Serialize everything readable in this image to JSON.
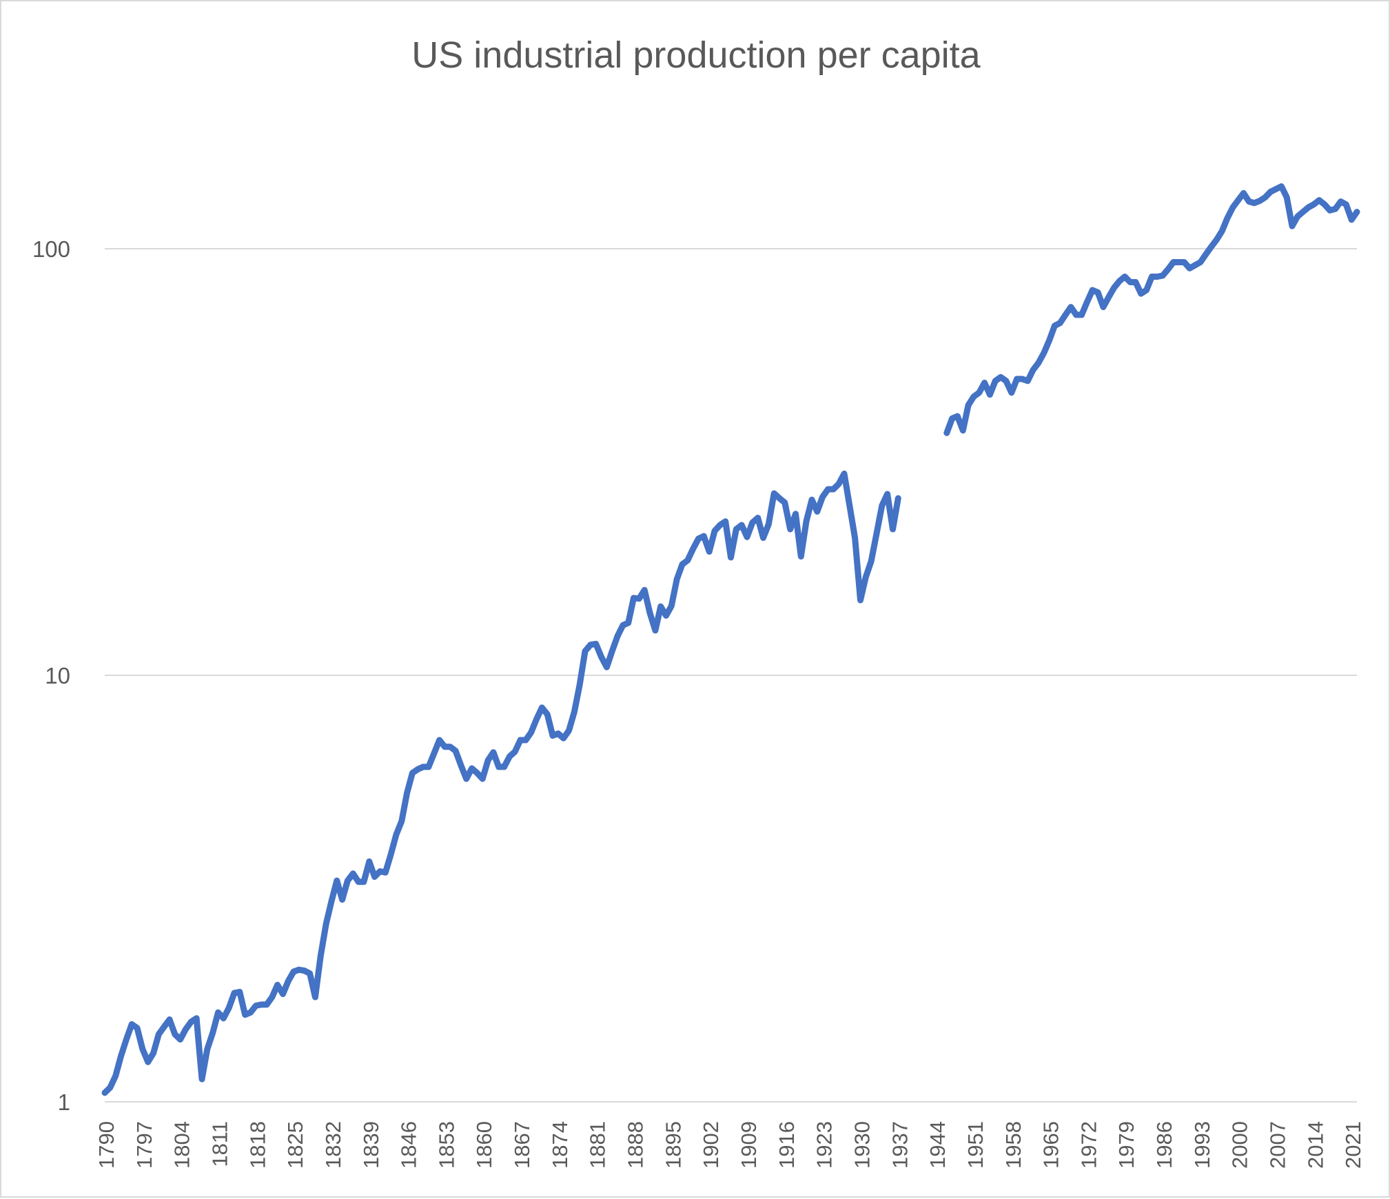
{
  "chart_data": {
    "type": "line",
    "title": "US industrial production per capita",
    "xlabel": "",
    "ylabel": "",
    "y_scale": "log",
    "ylim": [
      1,
      200
    ],
    "xlim": [
      1790,
      2022
    ],
    "grid": "horizontal",
    "legend": "none",
    "y_ticks": [
      {
        "value": 1,
        "label": "1"
      },
      {
        "value": 10,
        "label": "10"
      },
      {
        "value": 100,
        "label": "100"
      }
    ],
    "x_tick_labels": [
      "1790",
      "1797",
      "1804",
      "1811",
      "1818",
      "1825",
      "1832",
      "1839",
      "1846",
      "1853",
      "1860",
      "1867",
      "1874",
      "1881",
      "1888",
      "1895",
      "1902",
      "1909",
      "1916",
      "1923",
      "1930",
      "1937",
      "1944",
      "1951",
      "1958",
      "1965",
      "1972",
      "1979",
      "1986",
      "1993",
      "2000",
      "2007",
      "2014",
      "2021"
    ],
    "color": "#4472c4",
    "series": [
      {
        "segments": [
          {
            "start_year": 1790,
            "values": [
              1.05,
              1.08,
              1.15,
              1.28,
              1.4,
              1.52,
              1.49,
              1.33,
              1.24,
              1.3,
              1.44,
              1.5,
              1.56,
              1.44,
              1.4,
              1.48,
              1.54,
              1.57,
              1.13,
              1.33,
              1.45,
              1.62,
              1.57,
              1.66,
              1.8,
              1.81,
              1.6,
              1.62,
              1.68,
              1.69,
              1.69,
              1.76,
              1.88,
              1.79,
              1.92,
              2.02,
              2.04,
              2.03,
              2.0,
              1.76,
              2.2,
              2.61,
              2.95,
              3.3,
              2.98,
              3.3,
              3.43,
              3.28,
              3.28,
              3.66,
              3.37,
              3.47,
              3.45,
              3.8,
              4.23,
              4.55,
              5.3,
              5.9,
              6.02,
              6.1,
              6.1,
              6.55,
              7.05,
              6.8,
              6.8,
              6.65,
              6.15,
              5.72,
              6.05,
              5.9,
              5.72,
              6.32,
              6.6,
              6.1,
              6.1,
              6.45,
              6.62,
              7.05,
              7.05,
              7.35,
              7.9,
              8.4,
              8.1,
              7.22,
              7.3,
              7.12,
              7.42,
              8.21,
              9.51,
              11.39,
              11.79,
              11.85,
              11.05,
              10.45,
              11.39,
              12.35,
              13.1,
              13.27,
              15.18,
              15.13,
              15.85,
              14.0,
              12.74,
              14.5,
              13.8,
              14.54,
              16.8,
              18.2,
              18.6,
              19.8,
              20.9,
              21.2,
              19.5,
              21.8,
              22.5,
              22.95,
              18.9,
              22.0,
              22.5,
              21.1,
              22.8,
              23.4,
              21.0,
              22.6,
              26.7,
              26.0,
              25.4,
              22.0,
              23.9,
              19.0,
              23.0,
              25.8,
              24.2,
              26.2,
              27.3,
              27.3,
              28.1,
              29.7,
              25.0,
              21.0,
              15.0,
              17.0,
              18.5,
              21.5,
              25.0,
              26.6,
              22.0,
              26.0
            ]
          },
          {
            "start_year": 1946,
            "values": [
              37.0,
              40.0,
              40.5,
              37.5,
              43.0,
              45.0,
              46.0,
              48.5,
              45.5,
              49.0,
              50.0,
              49.0,
              46.0,
              49.5,
              49.5,
              49.0,
              52.0,
              54.0,
              57.0,
              61.0,
              66.0,
              67.0,
              70.0,
              73.0,
              70.0,
              70.0,
              75.0,
              80.0,
              79.0,
              73.0,
              77.0,
              81.0,
              84.0,
              86.0,
              83.5,
              83.5,
              78.5,
              80.0,
              86.0,
              86.0,
              86.5,
              89.5,
              93.0,
              93.0,
              93.0,
              90.0,
              91.5,
              93.0,
              97.0,
              101.0,
              105.0,
              110.0,
              118.0,
              125.0,
              130.0,
              135.0,
              129.0,
              128.0,
              129.5,
              132.0,
              136.0,
              138.0,
              140.0,
              132.0,
              113.0,
              119.0,
              122.0,
              125.0,
              127.0,
              130.0,
              127.0,
              123.0,
              124.0,
              129.0,
              127.0,
              117.0,
              122.0
            ]
          }
        ]
      }
    ]
  }
}
